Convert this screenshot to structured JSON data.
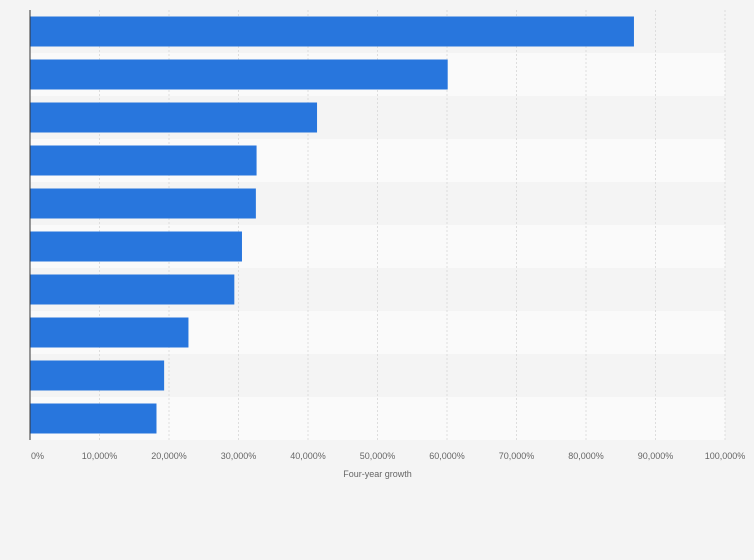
{
  "chart_data": {
    "type": "bar",
    "orientation": "horizontal",
    "title": "",
    "categories": [
      "",
      "",
      "",
      "",
      "",
      "",
      "",
      "",
      "",
      ""
    ],
    "values": [
      86900,
      60100,
      41300,
      32600,
      32500,
      30500,
      29400,
      22800,
      19300,
      18200
    ],
    "x_ticks": [
      "0%",
      "10,000%",
      "20,000%",
      "30,000%",
      "40,000%",
      "50,000%",
      "60,000%",
      "70,000%",
      "80,000%",
      "90,000%",
      "100,000%"
    ],
    "xlim": [
      0,
      100000
    ],
    "xlabel": "Four-year growth",
    "ylabel": "",
    "grid": true,
    "legend": "none",
    "bar_color": "#2876dd",
    "band_colors": [
      "#f4f4f4",
      "#fafafa"
    ],
    "gridline_color": "#dddddd",
    "axis_color": "#333333"
  }
}
